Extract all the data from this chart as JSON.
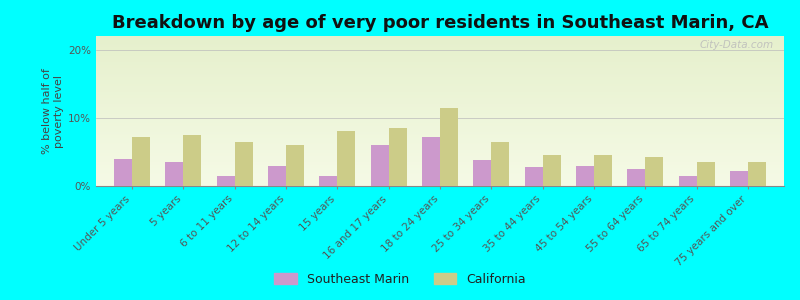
{
  "title": "Breakdown by age of very poor residents in Southeast Marin, CA",
  "ylabel": "% below half of\npoverty level",
  "categories": [
    "Under 5 years",
    "5 years",
    "6 to 11 years",
    "12 to 14 years",
    "15 years",
    "16 and 17 years",
    "18 to 24 years",
    "25 to 34 years",
    "35 to 44 years",
    "45 to 54 years",
    "55 to 64 years",
    "65 to 74 years",
    "75 years and over"
  ],
  "southeast_marin": [
    4.0,
    3.5,
    1.5,
    3.0,
    1.5,
    6.0,
    7.2,
    3.8,
    2.8,
    3.0,
    2.5,
    1.5,
    2.2
  ],
  "california": [
    7.2,
    7.5,
    6.5,
    6.0,
    8.0,
    8.5,
    11.5,
    6.5,
    4.5,
    4.5,
    4.2,
    3.5,
    3.5
  ],
  "southeast_marin_color": "#cc99cc",
  "california_color": "#cccc88",
  "background_outer": "#00ffff",
  "ylim": [
    0,
    22
  ],
  "yticks": [
    0,
    10,
    20
  ],
  "ytick_labels": [
    "0%",
    "10%",
    "20%"
  ],
  "title_fontsize": 13,
  "axis_label_fontsize": 8,
  "tick_fontsize": 7.5,
  "legend_fontsize": 9,
  "bar_width": 0.35,
  "watermark": "City-Data.com"
}
